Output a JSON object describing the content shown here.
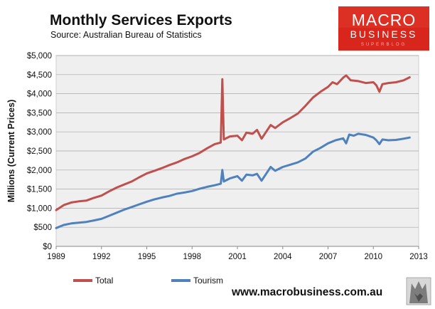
{
  "chart_data": {
    "type": "line",
    "title": "Monthly  Services Exports",
    "subtitle": "Source:  Australian Bureau of Statistics",
    "ylabel": "Millions (Current Prices)",
    "xlabel": "",
    "xlim": [
      1989,
      2013
    ],
    "ylim": [
      0,
      5000
    ],
    "x_ticks": [
      1989,
      1992,
      1995,
      1998,
      2001,
      2004,
      2007,
      2010,
      2013
    ],
    "y_ticks": [
      0,
      500,
      1000,
      1500,
      2000,
      2500,
      3000,
      3500,
      4000,
      4500,
      5000
    ],
    "x_tick_labels": [
      "1989",
      "1992",
      "1995",
      "1998",
      "2001",
      "2004",
      "2007",
      "2010",
      "2013"
    ],
    "y_tick_labels": [
      "$0",
      "$500",
      "$1,000",
      "$1,500",
      "$2,000",
      "$2,500",
      "$3,000",
      "$3,500",
      "$4,000",
      "$4,500",
      "$5,000"
    ],
    "legend_position": "bottom",
    "series": [
      {
        "name": "Total",
        "color": "#c0504d",
        "points": [
          [
            1989.0,
            950
          ],
          [
            1989.5,
            1080
          ],
          [
            1990.0,
            1150
          ],
          [
            1990.5,
            1180
          ],
          [
            1991.0,
            1200
          ],
          [
            1991.5,
            1270
          ],
          [
            1992.0,
            1330
          ],
          [
            1992.5,
            1440
          ],
          [
            1993.0,
            1540
          ],
          [
            1993.5,
            1620
          ],
          [
            1994.0,
            1700
          ],
          [
            1994.5,
            1810
          ],
          [
            1995.0,
            1910
          ],
          [
            1995.5,
            1980
          ],
          [
            1996.0,
            2050
          ],
          [
            1996.5,
            2130
          ],
          [
            1997.0,
            2200
          ],
          [
            1997.5,
            2290
          ],
          [
            1998.0,
            2360
          ],
          [
            1998.5,
            2450
          ],
          [
            1999.0,
            2570
          ],
          [
            1999.5,
            2680
          ],
          [
            1999.9,
            2720
          ],
          [
            2000.0,
            4380
          ],
          [
            2000.1,
            2800
          ],
          [
            2000.5,
            2880
          ],
          [
            2001.0,
            2900
          ],
          [
            2001.3,
            2780
          ],
          [
            2001.6,
            2980
          ],
          [
            2002.0,
            2950
          ],
          [
            2002.3,
            3050
          ],
          [
            2002.6,
            2820
          ],
          [
            2002.9,
            3000
          ],
          [
            2003.2,
            3180
          ],
          [
            2003.5,
            3100
          ],
          [
            2004.0,
            3250
          ],
          [
            2004.5,
            3360
          ],
          [
            2005.0,
            3480
          ],
          [
            2005.5,
            3680
          ],
          [
            2006.0,
            3900
          ],
          [
            2006.5,
            4050
          ],
          [
            2007.0,
            4180
          ],
          [
            2007.3,
            4300
          ],
          [
            2007.6,
            4250
          ],
          [
            2008.0,
            4420
          ],
          [
            2008.2,
            4480
          ],
          [
            2008.5,
            4350
          ],
          [
            2009.0,
            4330
          ],
          [
            2009.5,
            4280
          ],
          [
            2010.0,
            4300
          ],
          [
            2010.2,
            4220
          ],
          [
            2010.4,
            4050
          ],
          [
            2010.6,
            4250
          ],
          [
            2011.0,
            4280
          ],
          [
            2011.5,
            4300
          ],
          [
            2012.0,
            4350
          ],
          [
            2012.4,
            4430
          ]
        ]
      },
      {
        "name": "Tourism",
        "color": "#4f81bd",
        "points": [
          [
            1989.0,
            480
          ],
          [
            1989.5,
            560
          ],
          [
            1990.0,
            600
          ],
          [
            1990.5,
            620
          ],
          [
            1991.0,
            640
          ],
          [
            1991.5,
            680
          ],
          [
            1992.0,
            720
          ],
          [
            1992.5,
            800
          ],
          [
            1993.0,
            880
          ],
          [
            1993.5,
            960
          ],
          [
            1994.0,
            1030
          ],
          [
            1994.5,
            1100
          ],
          [
            1995.0,
            1170
          ],
          [
            1995.5,
            1230
          ],
          [
            1996.0,
            1280
          ],
          [
            1996.5,
            1320
          ],
          [
            1997.0,
            1380
          ],
          [
            1997.5,
            1410
          ],
          [
            1998.0,
            1450
          ],
          [
            1998.5,
            1510
          ],
          [
            1999.0,
            1560
          ],
          [
            1999.5,
            1600
          ],
          [
            1999.9,
            1640
          ],
          [
            2000.0,
            2000
          ],
          [
            2000.1,
            1700
          ],
          [
            2000.5,
            1780
          ],
          [
            2001.0,
            1840
          ],
          [
            2001.3,
            1720
          ],
          [
            2001.6,
            1880
          ],
          [
            2002.0,
            1860
          ],
          [
            2002.3,
            1900
          ],
          [
            2002.6,
            1720
          ],
          [
            2002.9,
            1900
          ],
          [
            2003.2,
            2080
          ],
          [
            2003.5,
            1980
          ],
          [
            2004.0,
            2080
          ],
          [
            2004.5,
            2140
          ],
          [
            2005.0,
            2200
          ],
          [
            2005.5,
            2300
          ],
          [
            2006.0,
            2480
          ],
          [
            2006.5,
            2580
          ],
          [
            2007.0,
            2700
          ],
          [
            2007.5,
            2780
          ],
          [
            2008.0,
            2830
          ],
          [
            2008.2,
            2700
          ],
          [
            2008.4,
            2930
          ],
          [
            2008.7,
            2900
          ],
          [
            2009.0,
            2950
          ],
          [
            2009.5,
            2920
          ],
          [
            2010.0,
            2850
          ],
          [
            2010.2,
            2780
          ],
          [
            2010.4,
            2680
          ],
          [
            2010.6,
            2800
          ],
          [
            2011.0,
            2780
          ],
          [
            2011.5,
            2790
          ],
          [
            2012.0,
            2820
          ],
          [
            2012.4,
            2850
          ]
        ]
      }
    ]
  },
  "branding": {
    "logo_line1": "MACRO",
    "logo_line2": "BUSINESS",
    "logo_line3": "SUPERBLOG",
    "logo_color": "#d9261c",
    "url": "www.macrobusiness.com.au",
    "wolf_icon": "wolf-icon"
  }
}
